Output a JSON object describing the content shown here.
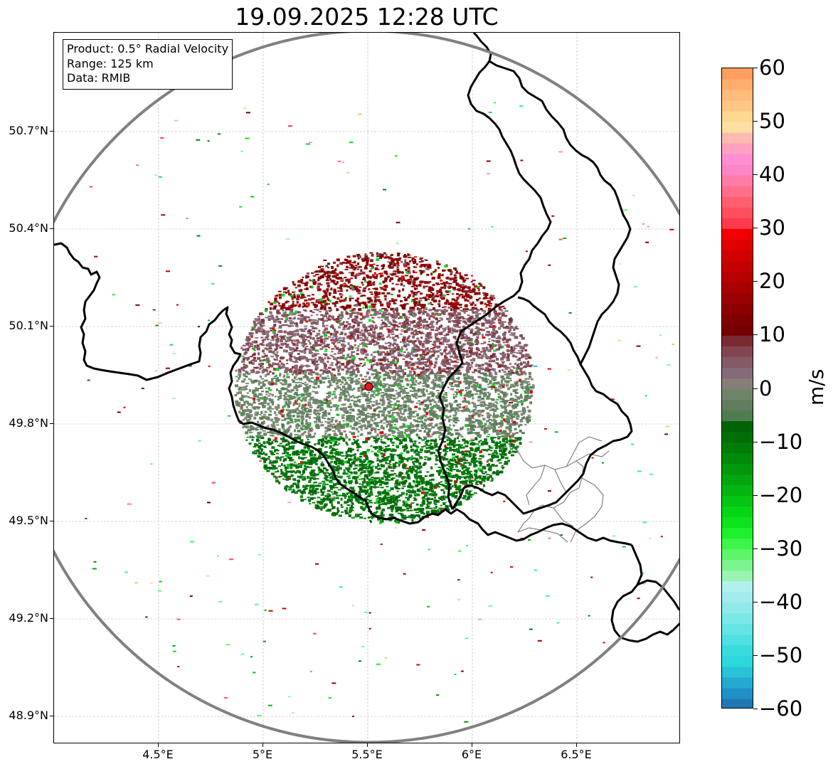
{
  "title": "19.09.2025 12:28 UTC",
  "info": {
    "product": "Product: 0.5° Radial Velocity",
    "range": "Range: 125 km",
    "data": "Data: RMIB"
  },
  "axes": {
    "lon_labels": [
      "4.5°E",
      "5°E",
      "5.5°E",
      "6°E",
      "6.5°E"
    ],
    "lon_values": [
      4.5,
      5.0,
      5.5,
      6.0,
      6.5
    ],
    "lat_labels": [
      "50.7°N",
      "50.4°N",
      "50.1°N",
      "49.8°N",
      "49.5°N",
      "49.2°N",
      "48.9°N"
    ],
    "lat_values": [
      50.7,
      50.4,
      50.1,
      49.8,
      49.5,
      49.2,
      48.9
    ],
    "lon_range": [
      4.0,
      7.0
    ],
    "lat_range": [
      48.8,
      51.0
    ]
  },
  "radar": {
    "site_lon": 5.505,
    "site_lat": 49.915,
    "site_color": "#e8161e",
    "range_ring_color": "#808080"
  },
  "colorbar": {
    "unit": "m/s",
    "min": -60,
    "max": 60,
    "tick_values": [
      60,
      50,
      40,
      30,
      20,
      10,
      0,
      -10,
      -20,
      -30,
      -40,
      -50,
      -60
    ],
    "tick_labels": [
      "60",
      "50",
      "40",
      "30",
      "20",
      "10",
      "0",
      "−10",
      "−20",
      "−30",
      "−40",
      "−50",
      "−60"
    ],
    "bands": [
      {
        "from": -60,
        "to": -58,
        "color": "#1f77b4"
      },
      {
        "from": -58,
        "to": -56,
        "color": "#2190c8"
      },
      {
        "from": -56,
        "to": -54,
        "color": "#24a9cf"
      },
      {
        "from": -54,
        "to": -52,
        "color": "#28c3d6"
      },
      {
        "from": -52,
        "to": -50,
        "color": "#2dd7dc"
      },
      {
        "from": -50,
        "to": -48,
        "color": "#38dcdf"
      },
      {
        "from": -48,
        "to": -46,
        "color": "#4ee0e2"
      },
      {
        "from": -46,
        "to": -44,
        "color": "#64e4e5"
      },
      {
        "from": -44,
        "to": -42,
        "color": "#7ae8e8"
      },
      {
        "from": -42,
        "to": -40,
        "color": "#8fe9ea"
      },
      {
        "from": -40,
        "to": -38,
        "color": "#a1ecec"
      },
      {
        "from": -38,
        "to": -36,
        "color": "#b2f0ee"
      },
      {
        "from": -36,
        "to": -34,
        "color": "#98f5b0"
      },
      {
        "from": -34,
        "to": -32,
        "color": "#7ef48f"
      },
      {
        "from": -32,
        "to": -30,
        "color": "#5ef56a"
      },
      {
        "from": -30,
        "to": -28,
        "color": "#3cf548"
      },
      {
        "from": -28,
        "to": -26,
        "color": "#1df02c"
      },
      {
        "from": -26,
        "to": -24,
        "color": "#0be41c"
      },
      {
        "from": -24,
        "to": -22,
        "color": "#06d616"
      },
      {
        "from": -22,
        "to": -20,
        "color": "#04c513"
      },
      {
        "from": -20,
        "to": -18,
        "color": "#03b511"
      },
      {
        "from": -18,
        "to": -16,
        "color": "#02a60e"
      },
      {
        "from": -16,
        "to": -14,
        "color": "#01980c"
      },
      {
        "from": -14,
        "to": -12,
        "color": "#018a0a"
      },
      {
        "from": -12,
        "to": -10,
        "color": "#007c08"
      },
      {
        "from": -10,
        "to": -8,
        "color": "#006f06"
      },
      {
        "from": -8,
        "to": -6,
        "color": "#006304"
      },
      {
        "from": -6,
        "to": -4,
        "color": "#4f7d4f"
      },
      {
        "from": -4,
        "to": -2,
        "color": "#607e5f"
      },
      {
        "from": -2,
        "to": 0,
        "color": "#6f8568"
      },
      {
        "from": 0,
        "to": 2,
        "color": "#877e78"
      },
      {
        "from": 2,
        "to": 4,
        "color": "#856b78"
      },
      {
        "from": 4,
        "to": 6,
        "color": "#835a66"
      },
      {
        "from": 6,
        "to": 8,
        "color": "#824650"
      },
      {
        "from": 8,
        "to": 10,
        "color": "#7a2a30"
      },
      {
        "from": 10,
        "to": 12,
        "color": "#740000"
      },
      {
        "from": 12,
        "to": 14,
        "color": "#800000"
      },
      {
        "from": 14,
        "to": 16,
        "color": "#8d0000"
      },
      {
        "from": 16,
        "to": 18,
        "color": "#9b0000"
      },
      {
        "from": 18,
        "to": 20,
        "color": "#a90000"
      },
      {
        "from": 20,
        "to": 22,
        "color": "#b70000"
      },
      {
        "from": 22,
        "to": 24,
        "color": "#c50000"
      },
      {
        "from": 24,
        "to": 26,
        "color": "#d30000"
      },
      {
        "from": 26,
        "to": 28,
        "color": "#e00000"
      },
      {
        "from": 28,
        "to": 30,
        "color": "#f20000"
      },
      {
        "from": 30,
        "to": 32,
        "color": "#ff3a4c"
      },
      {
        "from": 32,
        "to": 34,
        "color": "#ff4e5e"
      },
      {
        "from": 34,
        "to": 36,
        "color": "#ff6070"
      },
      {
        "from": 36,
        "to": 38,
        "color": "#ff6f8a"
      },
      {
        "from": 38,
        "to": 40,
        "color": "#ff7ba8"
      },
      {
        "from": 40,
        "to": 42,
        "color": "#ff86c4"
      },
      {
        "from": 42,
        "to": 44,
        "color": "#ff8ed2"
      },
      {
        "from": 44,
        "to": 46,
        "color": "#ffa0c0"
      },
      {
        "from": 46,
        "to": 48,
        "color": "#ffb9b0"
      },
      {
        "from": 48,
        "to": 50,
        "color": "#ffe0a0"
      },
      {
        "from": 50,
        "to": 52,
        "color": "#ffd890"
      },
      {
        "from": 52,
        "to": 54,
        "color": "#ffc684"
      },
      {
        "from": 54,
        "to": 56,
        "color": "#ffbb79"
      },
      {
        "from": 56,
        "to": 58,
        "color": "#ffad6d"
      },
      {
        "from": 58,
        "to": 60,
        "color": "#ff9e5e"
      }
    ]
  }
}
